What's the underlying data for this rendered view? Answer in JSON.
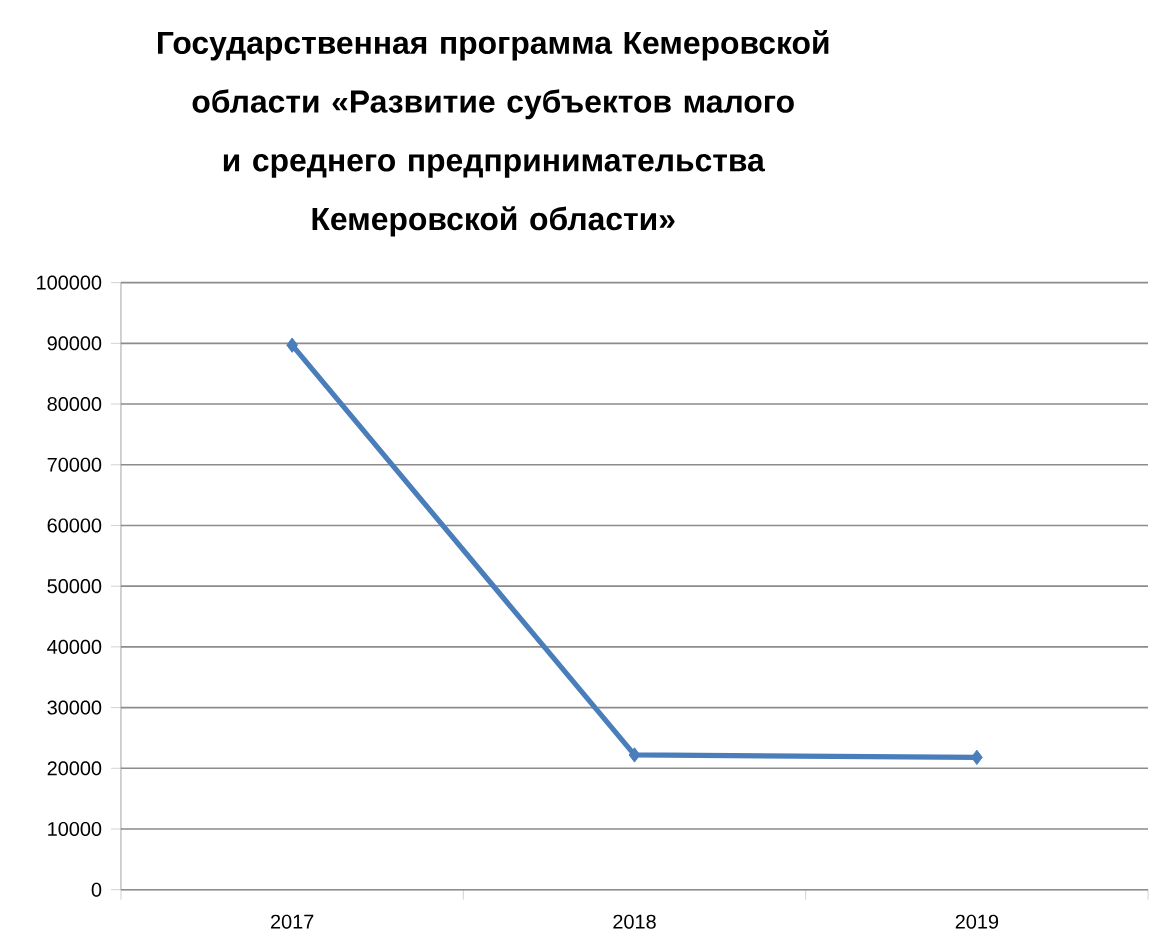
{
  "chart_data": {
    "type": "line",
    "title": "Государственная программа Кемеровской области «Развитие субъектов малого и среднего предпринимательства Кемеровской области»",
    "categories": [
      "2017",
      "2018",
      "2019"
    ],
    "series": [
      {
        "color": "#4a7ebb",
        "values": [
          89700,
          22200,
          21800
        ]
      }
    ],
    "ylim": [
      0,
      100000
    ],
    "yticks": [
      0,
      10000,
      20000,
      30000,
      40000,
      50000,
      60000,
      70000,
      80000,
      90000,
      100000
    ],
    "grid": "y",
    "marker": "diamond",
    "line_style": "solid"
  }
}
